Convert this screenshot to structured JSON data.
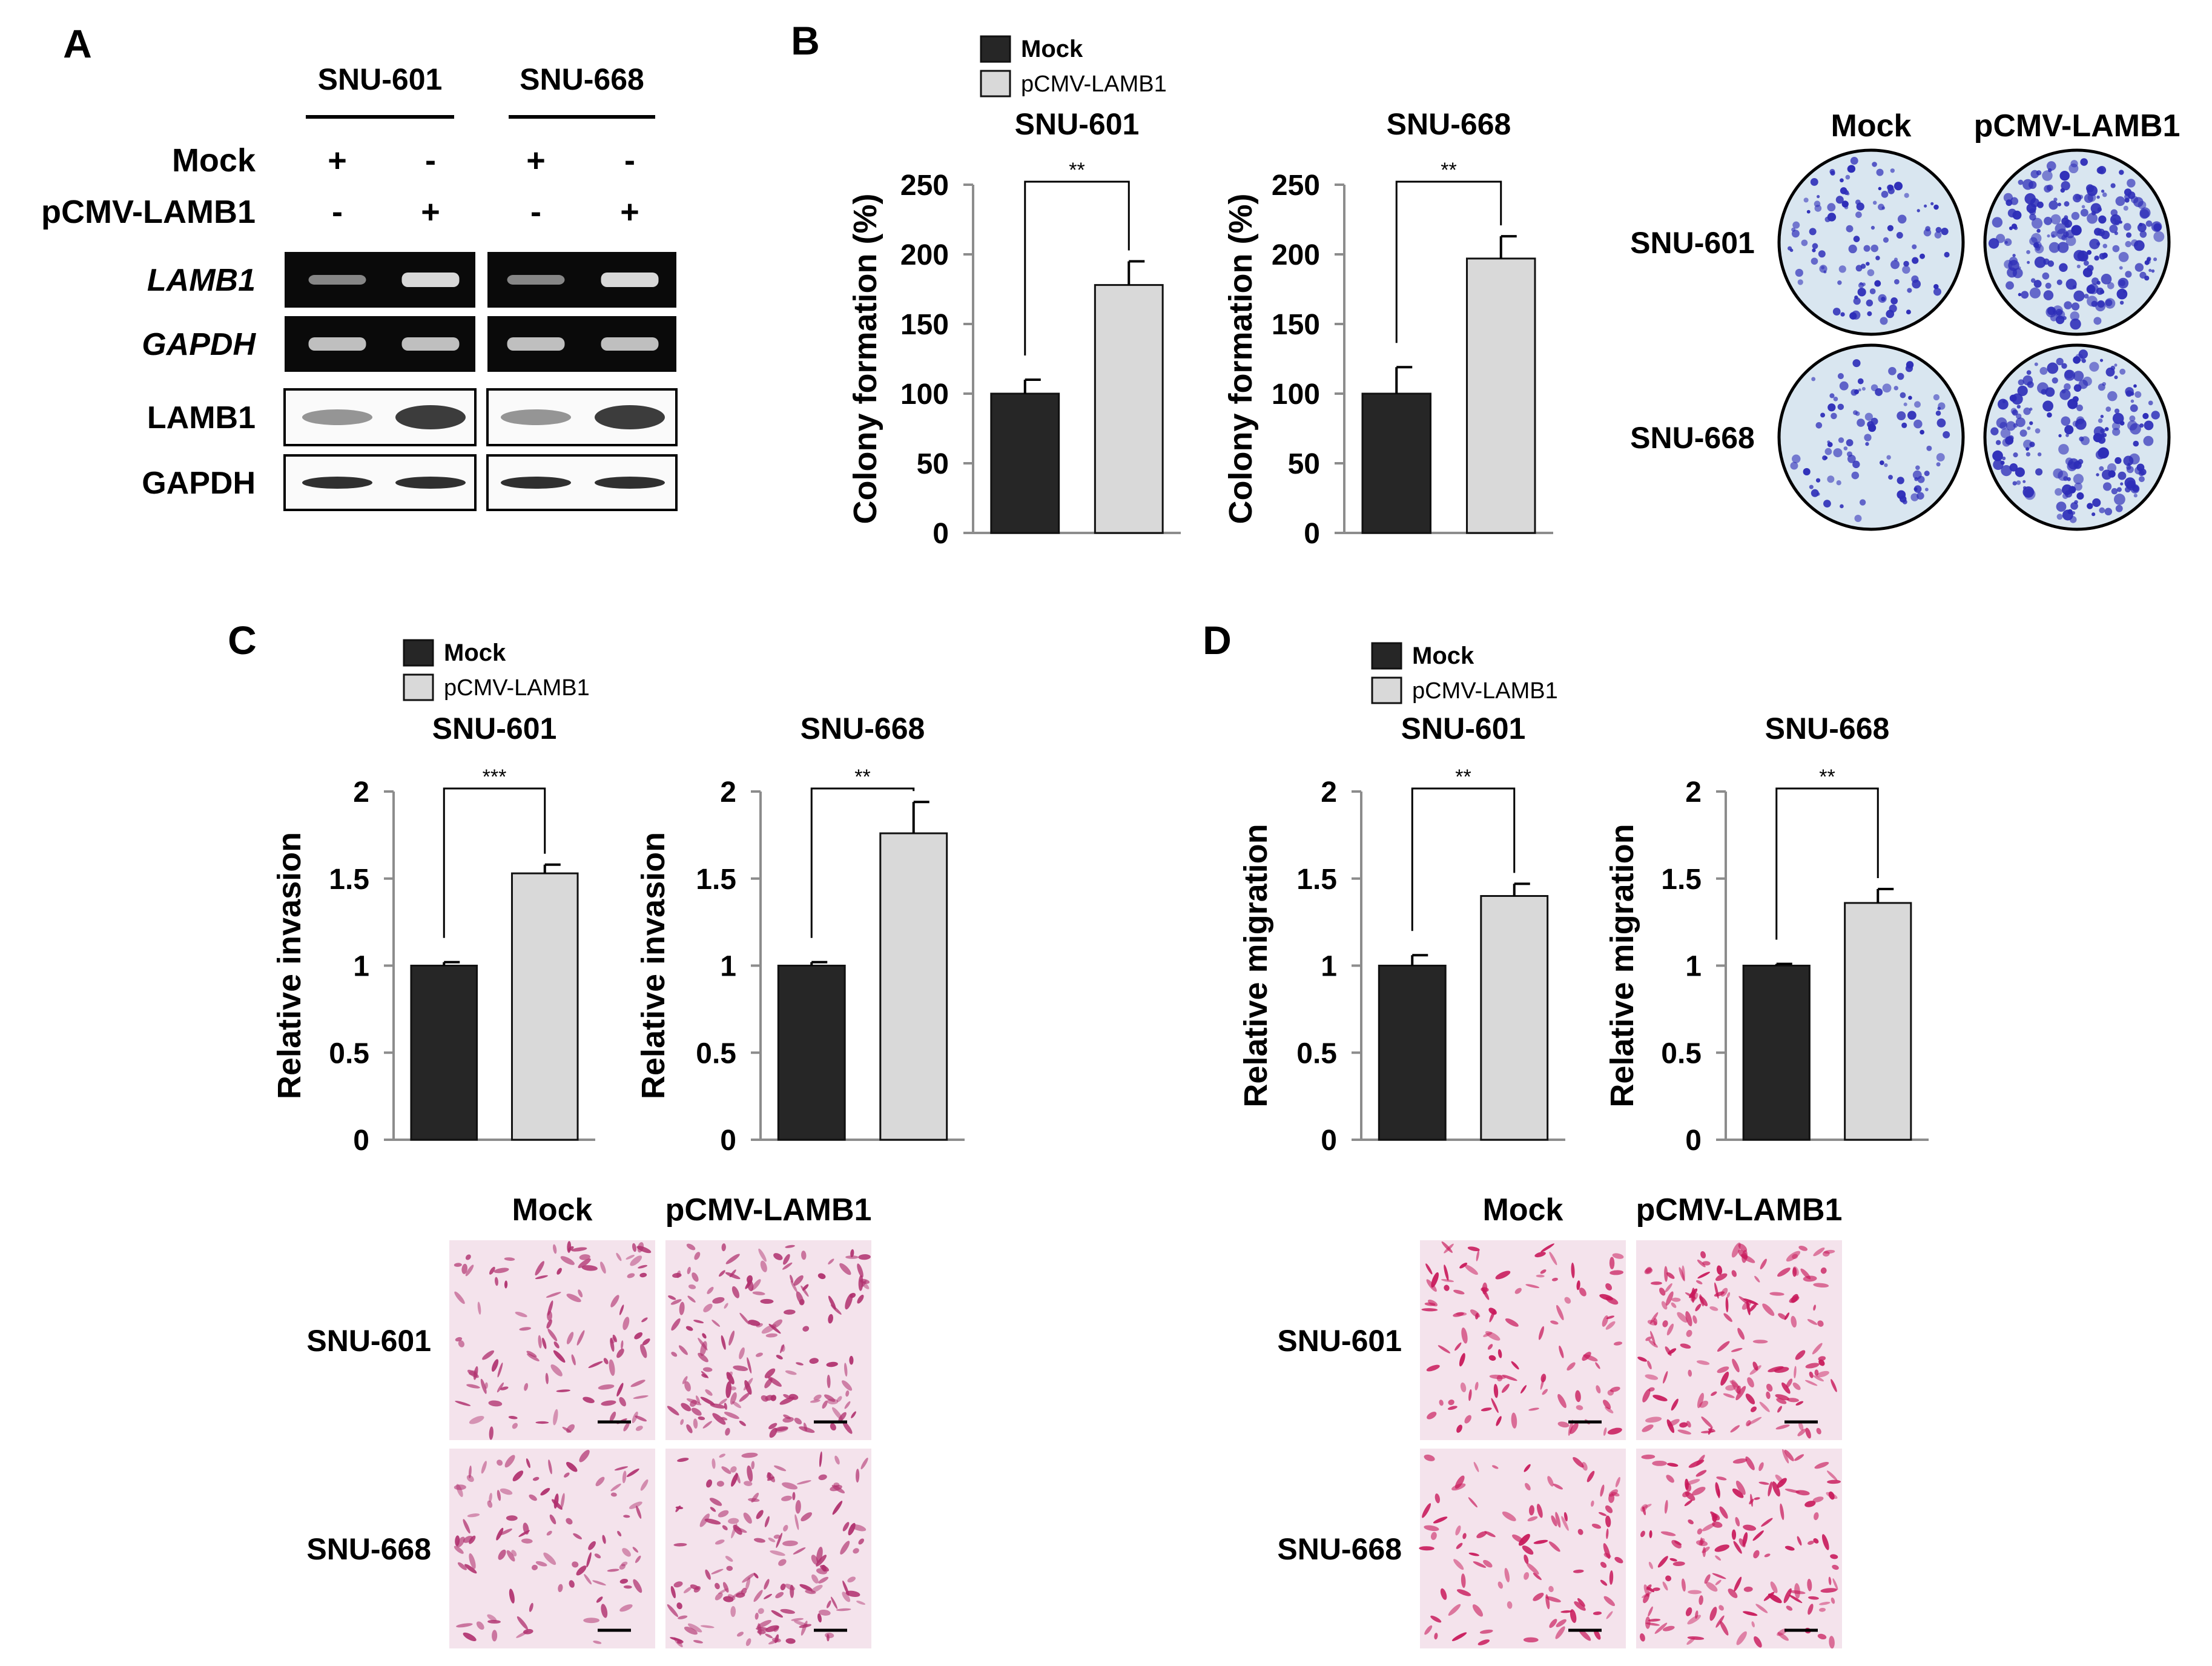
{
  "colors": {
    "mock": "#262626",
    "overexpression": "#d9d9d9",
    "gel_background": "#0a0a0a",
    "gel_band": "#d8d8d8",
    "crystal_violet": "#2d2db8",
    "plate_background": "#d9e6f0",
    "invasion_stain": "#b0306e",
    "migration_stain": "#c8185a",
    "membrane_background": "#f4e3ec"
  },
  "panels": {
    "A": {
      "letter": "A",
      "cell_lines": [
        "SNU-601",
        "SNU-668"
      ],
      "rows": [
        {
          "label": "Mock",
          "marks": [
            "+",
            "-",
            "+",
            "-"
          ]
        },
        {
          "label": "pCMV-LAMB1",
          "marks": [
            "-",
            "+",
            "-",
            "+"
          ]
        }
      ],
      "blots": [
        {
          "label": "LAMB1",
          "type": "rt-pcr",
          "italic": true
        },
        {
          "label": "GAPDH",
          "type": "rt-pcr",
          "italic": true
        },
        {
          "label": "LAMB1",
          "type": "western",
          "italic": false
        },
        {
          "label": "GAPDH",
          "type": "western",
          "italic": false
        }
      ]
    },
    "B": {
      "letter": "B",
      "legend": [
        "Mock",
        "pCMV-LAMB1"
      ],
      "image_columns": [
        "Mock",
        "pCMV-LAMB1"
      ],
      "image_rows": [
        "SNU-601",
        "SNU-668"
      ]
    },
    "C": {
      "letter": "C",
      "legend": [
        "Mock",
        "pCMV-LAMB1"
      ],
      "image_columns": [
        "Mock",
        "pCMV-LAMB1"
      ],
      "image_rows": [
        "SNU-601",
        "SNU-668"
      ]
    },
    "D": {
      "letter": "D",
      "legend": [
        "Mock",
        "pCMV-LAMB1"
      ],
      "image_columns": [
        "Mock",
        "pCMV-LAMB1"
      ],
      "image_rows": [
        "SNU-601",
        "SNU-668"
      ]
    }
  },
  "chart_data": [
    {
      "id": "B-601",
      "panel": "B",
      "type": "bar",
      "title": "SNU-601",
      "ylabel": "Colony formation (%)",
      "categories": [
        "Mock",
        "pCMV-LAMB1"
      ],
      "values": [
        100,
        178
      ],
      "errors": [
        10,
        17
      ],
      "ylim": [
        0,
        250
      ],
      "yticks": [
        0,
        50,
        100,
        150,
        200,
        250
      ],
      "significance": "**",
      "grid": false
    },
    {
      "id": "B-668",
      "panel": "B",
      "type": "bar",
      "title": "SNU-668",
      "ylabel": "Colony formation (%)",
      "categories": [
        "Mock",
        "pCMV-LAMB1"
      ],
      "values": [
        100,
        197
      ],
      "errors": [
        19,
        16
      ],
      "ylim": [
        0,
        250
      ],
      "yticks": [
        0,
        50,
        100,
        150,
        200,
        250
      ],
      "significance": "**",
      "grid": false
    },
    {
      "id": "C-601",
      "panel": "C",
      "type": "bar",
      "title": "SNU-601",
      "ylabel": "Relative invasion",
      "categories": [
        "Mock",
        "pCMV-LAMB1"
      ],
      "values": [
        1.0,
        1.53
      ],
      "errors": [
        0.02,
        0.05
      ],
      "ylim": [
        0,
        2
      ],
      "yticks": [
        0,
        0.5,
        1,
        1.5,
        2
      ],
      "significance": "***",
      "grid": false
    },
    {
      "id": "C-668",
      "panel": "C",
      "type": "bar",
      "title": "SNU-668",
      "ylabel": "Relative invasion",
      "categories": [
        "Mock",
        "pCMV-LAMB1"
      ],
      "values": [
        1.0,
        1.76
      ],
      "errors": [
        0.02,
        0.18
      ],
      "ylim": [
        0,
        2
      ],
      "yticks": [
        0,
        0.5,
        1,
        1.5,
        2
      ],
      "significance": "**",
      "grid": false
    },
    {
      "id": "D-601",
      "panel": "D",
      "type": "bar",
      "title": "SNU-601",
      "ylabel": "Relative migration",
      "categories": [
        "Mock",
        "pCMV-LAMB1"
      ],
      "values": [
        1.0,
        1.4
      ],
      "errors": [
        0.06,
        0.07
      ],
      "ylim": [
        0,
        2
      ],
      "yticks": [
        0,
        0.5,
        1,
        1.5,
        2
      ],
      "significance": "**",
      "grid": false
    },
    {
      "id": "D-668",
      "panel": "D",
      "type": "bar",
      "title": "SNU-668",
      "ylabel": "Relative migration",
      "categories": [
        "Mock",
        "pCMV-LAMB1"
      ],
      "values": [
        1.0,
        1.36
      ],
      "errors": [
        0.01,
        0.08
      ],
      "ylim": [
        0,
        2
      ],
      "yticks": [
        0,
        0.5,
        1,
        1.5,
        2
      ],
      "significance": "**",
      "grid": false
    }
  ]
}
